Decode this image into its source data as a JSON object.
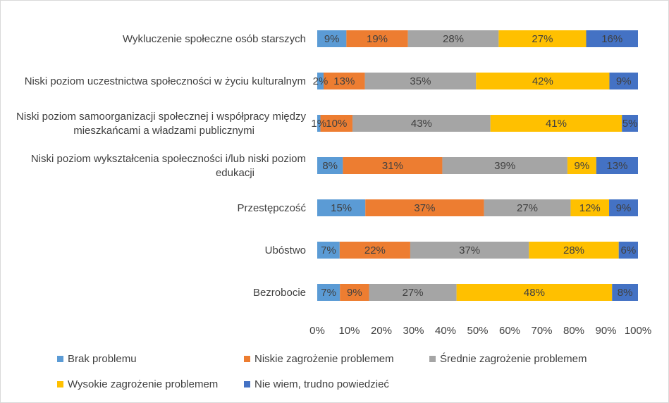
{
  "chart_data": {
    "type": "bar",
    "orientation": "horizontal",
    "stacked": "percent",
    "categories": [
      "Wykluczenie społeczne osób starszych",
      "Niski poziom uczestnictwa społeczności w życiu kulturalnym",
      "Niski poziom samoorganizacji społecznej i współpracy między mieszkańcami a władzami publicznymi",
      "Niski poziom wykształcenia społeczności i/lub niski poziom edukacji",
      "Przestępczość",
      "Ubóstwo",
      "Bezrobocie"
    ],
    "category_lines": [
      [
        "Wykluczenie społeczne osób starszych"
      ],
      [
        "Niski poziom uczestnictwa społeczności w życiu kulturalnym"
      ],
      [
        "Niski poziom samoorganizacji społecznej i współpracy między",
        "mieszkańcami a władzami publicznymi"
      ],
      [
        "Niski poziom wykształcenia społeczności i/lub niski poziom",
        "edukacji"
      ],
      [
        "Przestępczość"
      ],
      [
        "Ubóstwo"
      ],
      [
        "Bezrobocie"
      ]
    ],
    "series": [
      {
        "name": "Brak problemu",
        "color": "#5B9BD5",
        "values": [
          9,
          2,
          1,
          8,
          15,
          7,
          7
        ]
      },
      {
        "name": "Niskie zagrożenie problemem",
        "color": "#ED7D31",
        "values": [
          19,
          13,
          10,
          31,
          37,
          22,
          9
        ]
      },
      {
        "name": "Średnie zagrożenie problemem",
        "color": "#A5A5A5",
        "values": [
          28,
          35,
          43,
          39,
          27,
          37,
          27
        ]
      },
      {
        "name": "Wysokie zagrożenie problemem",
        "color": "#FFC000",
        "values": [
          27,
          42,
          41,
          9,
          12,
          28,
          48
        ]
      },
      {
        "name": "Nie wiem, trudno powiedzieć",
        "color": "#4472C4",
        "values": [
          16,
          9,
          5,
          13,
          9,
          6,
          8
        ]
      }
    ],
    "x_ticks": [
      "0%",
      "10%",
      "20%",
      "30%",
      "40%",
      "50%",
      "60%",
      "70%",
      "80%",
      "90%",
      "100%"
    ],
    "xlim": [
      0,
      100
    ],
    "grid": false,
    "legend_position": "bottom",
    "title": "",
    "xlabel": "",
    "ylabel": ""
  }
}
